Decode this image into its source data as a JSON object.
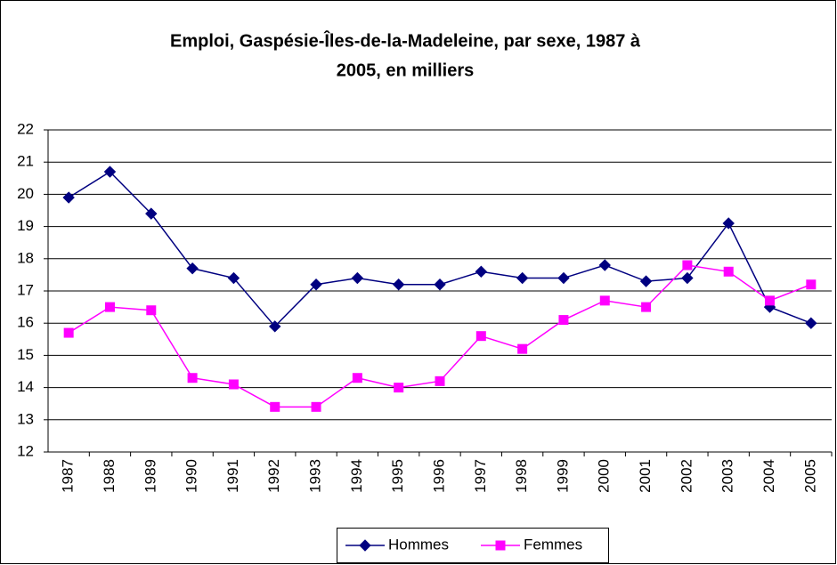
{
  "chart_data": {
    "type": "line",
    "title": [
      "Emploi, Gaspésie-Îles-de-la-Madeleine, par sexe, 1987 à",
      "2005, en milliers"
    ],
    "categories": [
      "1987",
      "1988",
      "1989",
      "1990",
      "1991",
      "1992",
      "1993",
      "1994",
      "1995",
      "1996",
      "1997",
      "1998",
      "1999",
      "2000",
      "2001",
      "2002",
      "2003",
      "2004",
      "2005"
    ],
    "series": [
      {
        "name": "Hommes",
        "color": "#000080",
        "marker": "diamond",
        "values": [
          19.9,
          20.7,
          19.4,
          17.7,
          17.4,
          15.9,
          17.2,
          17.4,
          17.2,
          17.2,
          17.6,
          17.4,
          17.4,
          17.8,
          17.3,
          17.4,
          19.1,
          16.5,
          16.0
        ]
      },
      {
        "name": "Femmes",
        "color": "#ff00ff",
        "marker": "square",
        "values": [
          15.7,
          16.5,
          16.4,
          14.3,
          14.1,
          13.4,
          13.4,
          14.3,
          14.0,
          14.2,
          15.6,
          15.2,
          16.1,
          16.7,
          16.5,
          17.8,
          17.6,
          16.7,
          17.2
        ]
      }
    ],
    "ylim": [
      12,
      22
    ],
    "yticks": [
      12,
      13,
      14,
      15,
      16,
      17,
      18,
      19,
      20,
      21,
      22
    ],
    "grid": true,
    "legend": "bottom"
  }
}
